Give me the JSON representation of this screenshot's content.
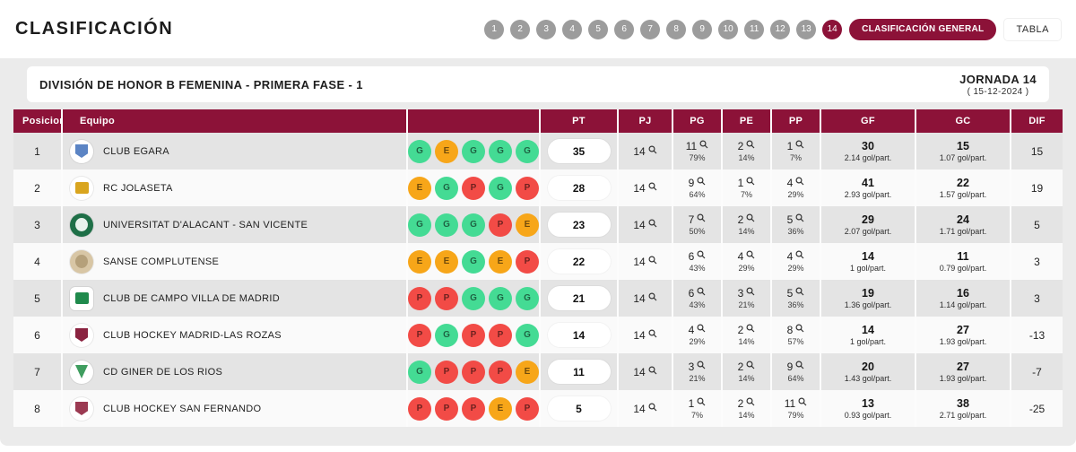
{
  "page": {
    "title": "CLASIFICACIÓN"
  },
  "nav": {
    "rounds": [
      "1",
      "2",
      "3",
      "4",
      "5",
      "6",
      "7",
      "8",
      "9",
      "10",
      "11",
      "12",
      "13",
      "14"
    ],
    "selected": "14",
    "general_label": "CLASIFICACIÓN GENERAL",
    "tabla_label": "TABLA"
  },
  "header": {
    "competition": "DIVISIÓN DE HONOR B FEMENINA - PRIMERA FASE - 1",
    "jornada": "JORNADA 14",
    "date": "( 15-12-2024 )"
  },
  "table": {
    "colors": {
      "maroon": "#8C1238",
      "win": "#44DB94",
      "draw": "#F7A619",
      "loss": "#F24B46"
    },
    "columns": [
      {
        "key": "pos",
        "label": "Posicion"
      },
      {
        "key": "team",
        "label": "Equipo"
      },
      {
        "key": "form",
        "label": ""
      },
      {
        "key": "pt",
        "label": "PT"
      },
      {
        "key": "pj",
        "label": "PJ"
      },
      {
        "key": "pg",
        "label": "PG"
      },
      {
        "key": "pe",
        "label": "PE"
      },
      {
        "key": "pp",
        "label": "PP"
      },
      {
        "key": "gf",
        "label": "GF"
      },
      {
        "key": "gc",
        "label": "GC"
      },
      {
        "key": "dif",
        "label": "DIF"
      }
    ],
    "rows": [
      {
        "position": "1",
        "team": "CLUB EGARA",
        "logo": {
          "outer": "circle",
          "bg": "#ffffff",
          "shape": "shield",
          "fg": "#5b84c4"
        },
        "form": [
          "G",
          "E",
          "G",
          "G",
          "G"
        ],
        "pt": "35",
        "pj": "14",
        "pg": "11",
        "pg_pct": "79%",
        "pe": "2",
        "pe_pct": "14%",
        "pp": "1",
        "pp_pct": "7%",
        "gf": "30",
        "gf_avg": "2.14 gol/part.",
        "gc": "15",
        "gc_avg": "1.07 gol/part.",
        "dif": "15"
      },
      {
        "position": "2",
        "team": "RC JOLASETA",
        "logo": {
          "outer": "circle",
          "bg": "#ffffff",
          "shape": "square",
          "fg": "#d9a51f"
        },
        "form": [
          "E",
          "G",
          "P",
          "G",
          "P"
        ],
        "pt": "28",
        "pj": "14",
        "pg": "9",
        "pg_pct": "64%",
        "pe": "1",
        "pe_pct": "7%",
        "pp": "4",
        "pp_pct": "29%",
        "gf": "41",
        "gf_avg": "2.93 gol/part.",
        "gc": "22",
        "gc_avg": "1.57 gol/part.",
        "dif": "19"
      },
      {
        "position": "3",
        "team": "UNIVERSITAT D'ALACANT - SAN VICENTE",
        "logo": {
          "outer": "circle",
          "bg": "#1e6f47",
          "shape": "circle",
          "fg": "#e8f2ec"
        },
        "form": [
          "G",
          "G",
          "G",
          "P",
          "E"
        ],
        "pt": "23",
        "pj": "14",
        "pg": "7",
        "pg_pct": "50%",
        "pe": "2",
        "pe_pct": "14%",
        "pp": "5",
        "pp_pct": "36%",
        "gf": "29",
        "gf_avg": "2.07 gol/part.",
        "gc": "24",
        "gc_avg": "1.71 gol/part.",
        "dif": "5"
      },
      {
        "position": "4",
        "team": "SANSE COMPLUTENSE",
        "logo": {
          "outer": "circle",
          "bg": "#d8c6a5",
          "shape": "circle",
          "fg": "#b5a07a"
        },
        "form": [
          "E",
          "E",
          "G",
          "E",
          "P"
        ],
        "pt": "22",
        "pj": "14",
        "pg": "6",
        "pg_pct": "43%",
        "pe": "4",
        "pe_pct": "29%",
        "pp": "4",
        "pp_pct": "29%",
        "gf": "14",
        "gf_avg": "1 gol/part.",
        "gc": "11",
        "gc_avg": "0.79 gol/part.",
        "dif": "3"
      },
      {
        "position": "5",
        "team": "CLUB DE CAMPO VILLA DE MADRID",
        "logo": {
          "outer": "square",
          "bg": "#ffffff",
          "shape": "square",
          "fg": "#1f8a4c"
        },
        "form": [
          "P",
          "P",
          "G",
          "G",
          "G"
        ],
        "pt": "21",
        "pj": "14",
        "pg": "6",
        "pg_pct": "43%",
        "pe": "3",
        "pe_pct": "21%",
        "pp": "5",
        "pp_pct": "36%",
        "gf": "19",
        "gf_avg": "1.36 gol/part.",
        "gc": "16",
        "gc_avg": "1.14 gol/part.",
        "dif": "3"
      },
      {
        "position": "6",
        "team": "CLUB HOCKEY MADRID-LAS ROZAS",
        "logo": {
          "outer": "circle",
          "bg": "#ffffff",
          "shape": "shield",
          "fg": "#8a2340"
        },
        "form": [
          "P",
          "G",
          "P",
          "P",
          "G"
        ],
        "pt": "14",
        "pj": "14",
        "pg": "4",
        "pg_pct": "29%",
        "pe": "2",
        "pe_pct": "14%",
        "pp": "8",
        "pp_pct": "57%",
        "gf": "14",
        "gf_avg": "1 gol/part.",
        "gc": "27",
        "gc_avg": "1.93 gol/part.",
        "dif": "-13"
      },
      {
        "position": "7",
        "team": "CD GINER DE LOS RIOS",
        "logo": {
          "outer": "circle",
          "bg": "#ffffff",
          "shape": "triangle",
          "fg": "#3f9d5f"
        },
        "form": [
          "G",
          "P",
          "P",
          "P",
          "E"
        ],
        "pt": "11",
        "pj": "14",
        "pg": "3",
        "pg_pct": "21%",
        "pe": "2",
        "pe_pct": "14%",
        "pp": "9",
        "pp_pct": "64%",
        "gf": "20",
        "gf_avg": "1.43 gol/part.",
        "gc": "27",
        "gc_avg": "1.93 gol/part.",
        "dif": "-7"
      },
      {
        "position": "8",
        "team": "CLUB HOCKEY SAN FERNANDO",
        "logo": {
          "outer": "circle",
          "bg": "#ffffff",
          "shape": "shield",
          "fg": "#9b3a52"
        },
        "form": [
          "P",
          "P",
          "P",
          "E",
          "P"
        ],
        "pt": "5",
        "pj": "14",
        "pg": "1",
        "pg_pct": "7%",
        "pe": "2",
        "pe_pct": "14%",
        "pp": "11",
        "pp_pct": "79%",
        "gf": "13",
        "gf_avg": "0.93 gol/part.",
        "gc": "38",
        "gc_avg": "2.71 gol/part.",
        "dif": "-25"
      }
    ]
  }
}
